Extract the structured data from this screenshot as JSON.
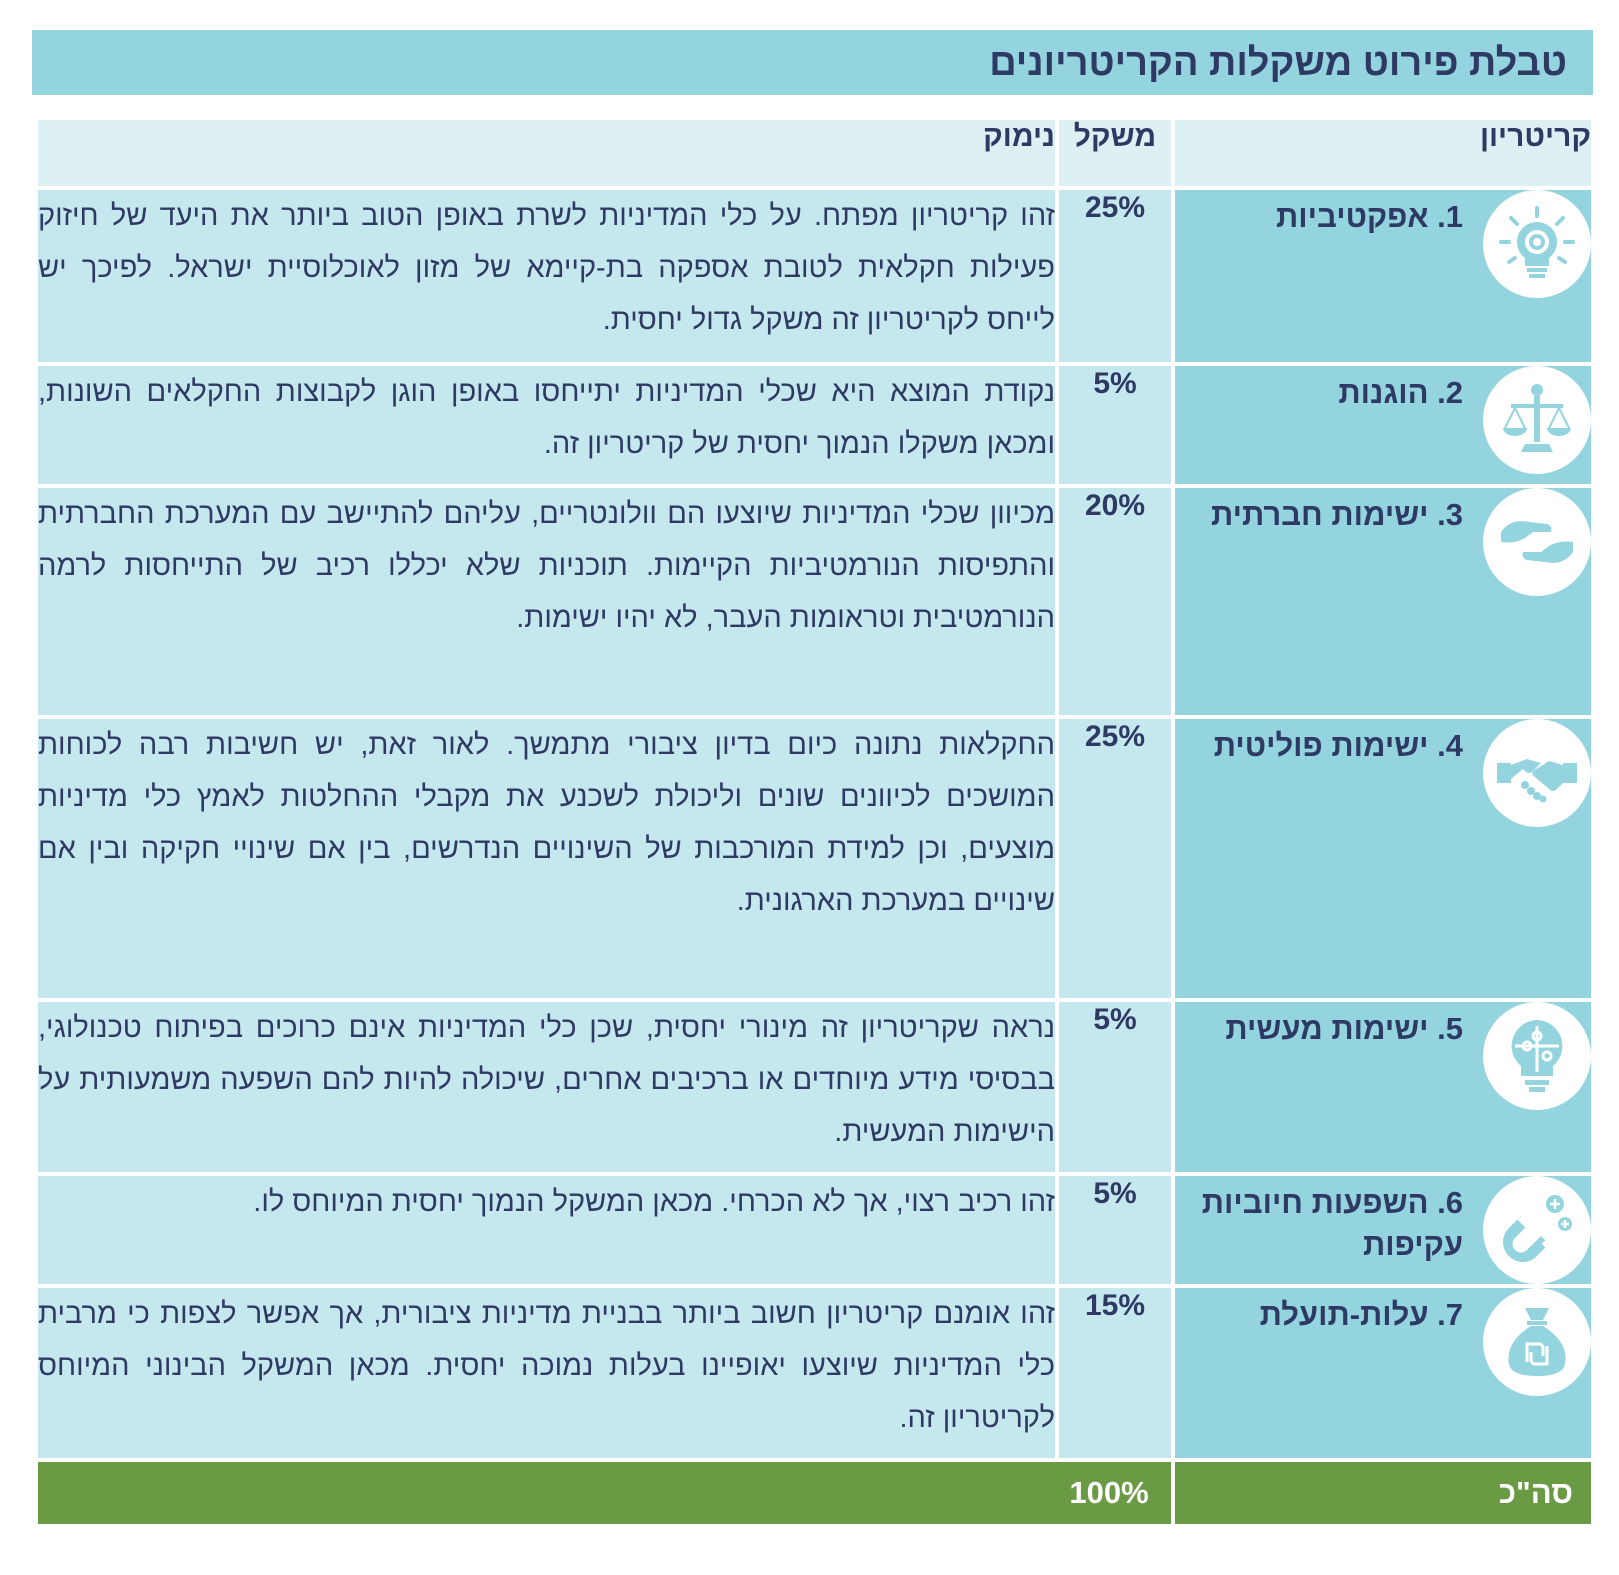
{
  "title": "טבלת פירוט משקלות הקריטריונים",
  "headers": {
    "criterion": "קריטריון",
    "weight": "משקל",
    "reasoning": "נימוק"
  },
  "rows": [
    {
      "label": "1. אפקטיביות",
      "icon": "lightbulb-target-icon",
      "weight": "25%",
      "reasoning": "זהו קריטריון מפתח. על כלי המדיניות לשרת באופן הטוב ביותר את היעד של חיזוק פעילות חקלאית לטובת אספקה בת-קיימא של מזון לאוכלוסיית ישראל. לפיכך יש לייחס לקריטריון זה משקל גדול יחסית."
    },
    {
      "label": "2. הוגנות",
      "icon": "scales-icon",
      "weight": "5%",
      "reasoning": "נקודת המוצא היא שכלי המדיניות יתייחסו באופן הוגן לקבוצות החקלאים השונות, ומכאן משקלו הנמוך יחסית של קריטריון זה."
    },
    {
      "label": "3. ישימות חברתית",
      "icon": "hands-reaching-icon",
      "weight": "20%",
      "reasoning": "מכיוון שכלי המדיניות שיוצעו הם וולונטריים, עליהם להתיישב עם המערכת החברתית והתפיסות הנורמטיביות הקיימות. תוכניות שלא יכללו רכיב של התייחסות לרמה הנורמטיבית וטראומות העבר, לא יהיו ישימות."
    },
    {
      "label": "4. ישימות פוליטית",
      "icon": "handshake-icon",
      "weight": "25%",
      "reasoning": "החקלאות נתונה כיום בדיון ציבורי מתמשך. לאור זאת, יש חשיבות רבה לכוחות המושכים לכיוונים שונים וליכולת לשכנע את מקבלי ההחלטות לאמץ כלי מדיניות מוצעים, וכן למידת המורכבות של השינויים הנדרשים, בין אם שינויי חקיקה ובין אם שינויים במערכת הארגונית."
    },
    {
      "label": "5. ישימות מעשית",
      "icon": "lightbulb-puzzle-icon",
      "weight": "5%",
      "reasoning": "נראה שקריטריון זה מינורי יחסית, שכן כלי המדיניות אינם כרוכים בפיתוח טכנולוגי, בבסיסי מידע מיוחדים או ברכיבים אחרים, שיכולה להיות להם השפעה משמעותית על הישימות המעשית."
    },
    {
      "label": "6. השפעות חיוביות עקיפות",
      "icon": "magnet-plus-icon",
      "weight": "5%",
      "reasoning": "זהו רכיב רצוי, אך לא הכרחי. מכאן המשקל הנמוך יחסית המיוחס לו."
    },
    {
      "label": "7. עלות-תועלת",
      "icon": "money-bag-shekel-icon",
      "weight": "15%",
      "reasoning": "זהו אומנם קריטריון חשוב ביותר בבניית מדיניות ציבורית, אך אפשר לצפות כי מרבית כלי המדיניות שיוצעו יאופיינו בעלות נמוכה יחסית. מכאן המשקל הבינוני המיוחס לקריטריון זה."
    }
  ],
  "total": {
    "label": "סה\"כ",
    "weight": "100%"
  },
  "colors": {
    "title_bg": "#93d4de",
    "header_bg": "#ddf0f4",
    "criterion_bg": "#93d4de",
    "body_bg": "#c5e7ee",
    "total_bg": "#6a9a44",
    "text": "#2e3a63"
  }
}
